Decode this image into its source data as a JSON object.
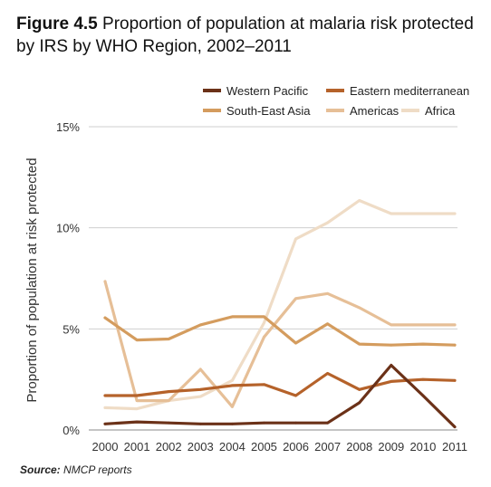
{
  "figure": {
    "label": "Figure 4.5",
    "caption": "Proportion of population at malaria risk protected by IRS by WHO Region, 2002–2011"
  },
  "source": {
    "label": "Source:",
    "text": "NMCP reports"
  },
  "chart_data": {
    "type": "line",
    "x": [
      "2000",
      "2001",
      "2002",
      "2003",
      "2004",
      "2005",
      "2006",
      "2007",
      "2008",
      "2009",
      "2010",
      "2011"
    ],
    "ylabel": "Proportion of population at risk protected",
    "xlabel": "",
    "ylim": [
      0,
      15
    ],
    "yticks": [
      0,
      5,
      10,
      15
    ],
    "ytick_labels": [
      "0%",
      "5%",
      "10%",
      "15%"
    ],
    "grid": "horizontal",
    "legend_position": "top-right",
    "series": [
      {
        "name": "Western Pacific",
        "color": "#6b3118",
        "values": [
          0.3,
          0.4,
          0.35,
          0.3,
          0.3,
          0.35,
          0.35,
          0.35,
          1.35,
          3.2,
          1.7,
          0.15
        ]
      },
      {
        "name": "Eastern mediterranean",
        "color": "#b5622a",
        "values": [
          1.7,
          1.7,
          1.9,
          2.0,
          2.2,
          2.25,
          1.7,
          2.8,
          2.0,
          2.4,
          2.5,
          2.45
        ]
      },
      {
        "name": "South-East Asia",
        "color": "#d49c5e",
        "values": [
          5.55,
          4.45,
          4.5,
          5.2,
          5.6,
          5.6,
          4.3,
          5.25,
          4.25,
          4.2,
          4.25,
          4.2
        ]
      },
      {
        "name": "Americas",
        "color": "#e6bf97",
        "values": [
          7.35,
          1.45,
          1.45,
          3.0,
          1.15,
          4.6,
          6.5,
          6.75,
          6.05,
          5.2,
          5.2,
          5.2
        ]
      },
      {
        "name": "Africa",
        "color": "#efdcc6",
        "values": [
          1.1,
          1.05,
          1.45,
          1.65,
          2.45,
          5.3,
          9.45,
          10.25,
          11.35,
          10.7,
          10.7,
          10.7
        ]
      }
    ]
  }
}
